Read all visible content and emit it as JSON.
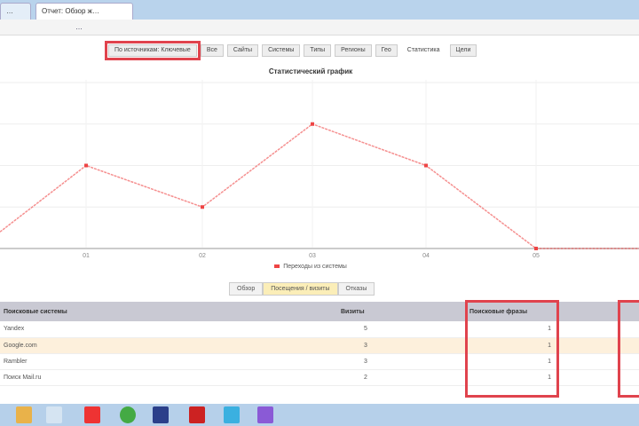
{
  "browser": {
    "tabs": [
      {
        "label": "…"
      },
      {
        "label": "Отчет: Обзор ж…"
      }
    ],
    "url": "…"
  },
  "toolbar": {
    "buttons": [
      "По источникам: Ключевые",
      "Все",
      "Сайты",
      "Системы",
      "Типы",
      "Регионы",
      "Гео",
      "Статистика",
      "Цели"
    ]
  },
  "chart_data": {
    "type": "line",
    "title": "Статистический график",
    "categories": [
      "",
      "01",
      "02",
      "03",
      "04",
      "05",
      ""
    ],
    "series": [
      {
        "name": "Переходы из системы",
        "values": [
          0.4,
          2,
          1,
          3,
          2,
          0,
          0
        ]
      }
    ],
    "ylim": [
      0,
      4
    ],
    "grid": true,
    "legend": "bottom",
    "color": "#e44"
  },
  "segment": {
    "items": [
      "Обзор",
      "Посещения / визиты",
      "Отказы"
    ],
    "active": 1
  },
  "table": {
    "headers": [
      "Поисковые системы",
      "Визиты",
      "Поисковые фразы",
      ""
    ],
    "rows": [
      [
        "Yandex",
        "5",
        "1"
      ],
      [
        "Google.com",
        "3",
        "1"
      ],
      [
        "Rambler",
        "3",
        "1"
      ],
      [
        "Поиск Mail.ru",
        "2",
        "1"
      ]
    ]
  }
}
